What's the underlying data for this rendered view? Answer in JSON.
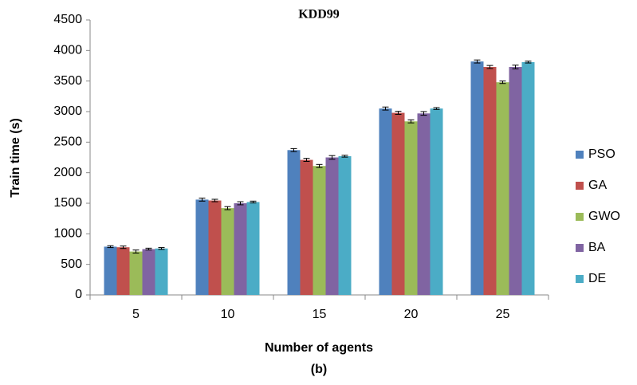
{
  "chart_data": {
    "type": "bar",
    "title": "KDD99",
    "subtitle": "(b)",
    "x_label": "Number of agents",
    "y_label": "Train time (s)",
    "categories": [
      "5",
      "10",
      "15",
      "20",
      "25"
    ],
    "series": [
      {
        "name": "PSO",
        "color": "#4f81bd",
        "values": [
          790,
          1560,
          2370,
          3050,
          3820
        ],
        "errors": [
          15,
          25,
          25,
          25,
          25
        ]
      },
      {
        "name": "GA",
        "color": "#c0504d",
        "values": [
          780,
          1545,
          2210,
          2980,
          3730
        ],
        "errors": [
          20,
          20,
          25,
          25,
          25
        ]
      },
      {
        "name": "GWO",
        "color": "#9bbb59",
        "values": [
          710,
          1420,
          2110,
          2840,
          3480
        ],
        "errors": [
          25,
          25,
          25,
          25,
          20
        ]
      },
      {
        "name": "BA",
        "color": "#8064a2",
        "values": [
          750,
          1500,
          2250,
          2970,
          3730
        ],
        "errors": [
          15,
          25,
          30,
          30,
          30
        ]
      },
      {
        "name": "DE",
        "color": "#4bacc6",
        "values": [
          760,
          1520,
          2270,
          3050,
          3810
        ],
        "errors": [
          15,
          15,
          15,
          15,
          15
        ]
      }
    ],
    "ylim": [
      0,
      4500
    ],
    "yticks": [
      0,
      500,
      1000,
      1500,
      2000,
      2500,
      3000,
      3500,
      4000,
      4500
    ],
    "grid": false,
    "legend": "right"
  }
}
